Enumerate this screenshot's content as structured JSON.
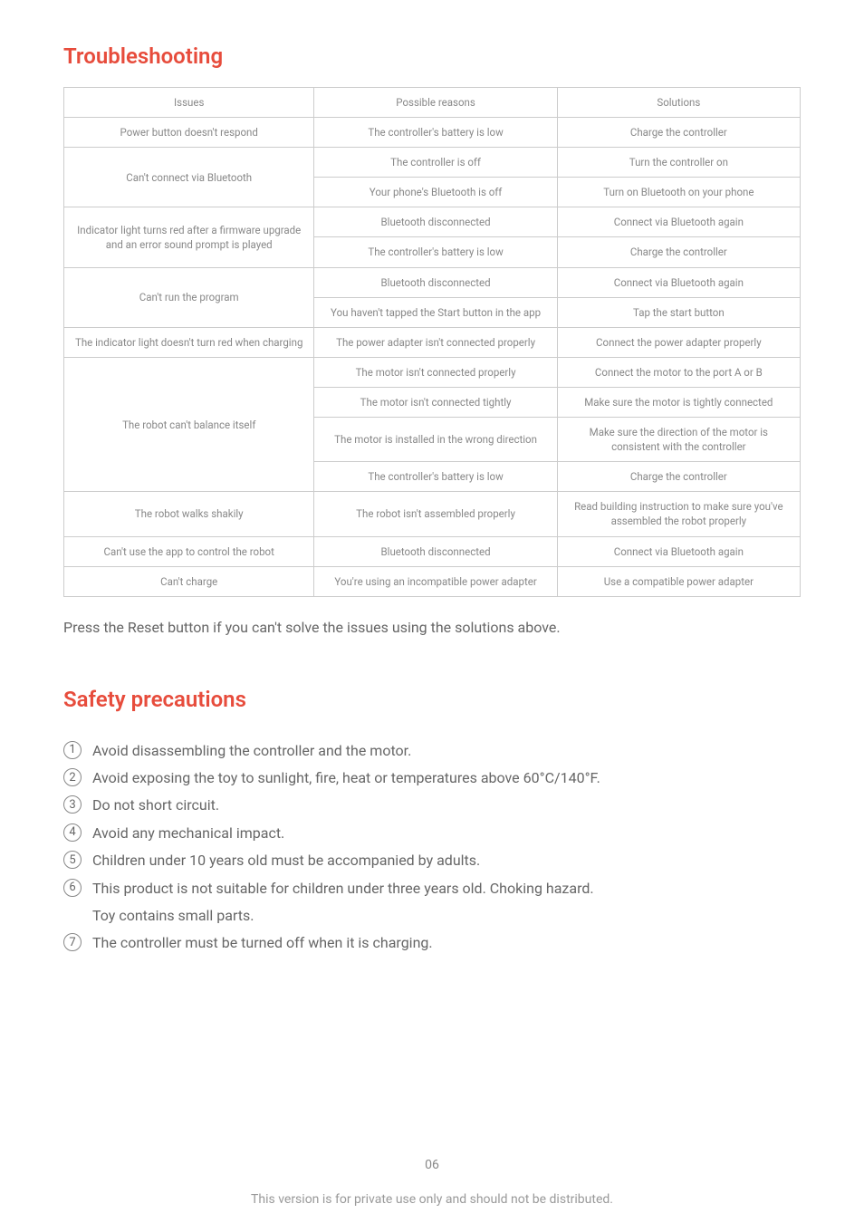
{
  "troubleshooting": {
    "title": "Troubleshooting",
    "headers": {
      "issues": "Issues",
      "reasons": "Possible reasons",
      "solutions": "Solutions"
    },
    "rows": [
      {
        "issue": "Power button doesn't respond",
        "reason": "The controller's battery is low",
        "solution": "Charge the controller"
      },
      {
        "issue": "Can't connect via Bluetooth",
        "span": 2,
        "cells": [
          {
            "reason": "The controller is off",
            "solution": "Turn the controller on"
          },
          {
            "reason": "Your phone's Bluetooth is off",
            "solution": "Turn on Bluetooth on your phone"
          }
        ]
      },
      {
        "issue": "Indicator light turns red after a firmware upgrade and an error sound prompt is played",
        "span": 2,
        "cells": [
          {
            "reason": "Bluetooth disconnected",
            "solution": "Connect via Bluetooth again"
          },
          {
            "reason": "The controller's battery is low",
            "solution": "Charge the controller"
          }
        ]
      },
      {
        "issue": "Can't run the program",
        "span": 2,
        "cells": [
          {
            "reason": "Bluetooth disconnected",
            "solution": "Connect via Bluetooth again"
          },
          {
            "reason": "You haven't tapped the Start button in the app",
            "solution": "Tap the start button"
          }
        ]
      },
      {
        "issue": "The indicator light doesn't turn red when charging",
        "reason": "The power adapter isn't connected properly",
        "solution": "Connect the power adapter properly"
      },
      {
        "issue": "The robot can't balance itself",
        "span": 4,
        "cells": [
          {
            "reason": "The motor isn't connected properly",
            "solution": "Connect the motor to the port A or B"
          },
          {
            "reason": "The motor isn't connected tightly",
            "solution": "Make sure the motor is tightly connected"
          },
          {
            "reason": "The motor is installed in the wrong direction",
            "solution": "Make sure the direction of the motor is consistent with the controller"
          },
          {
            "reason": "The controller's battery is low",
            "solution": "Charge the controller"
          }
        ]
      },
      {
        "issue": "The robot walks shakily",
        "reason": "The robot isn't assembled properly",
        "solution": "Read building instruction to make sure you've assembled the robot properly"
      },
      {
        "issue": "Can't use the app to control the robot",
        "reason": "Bluetooth disconnected",
        "solution": "Connect via Bluetooth again"
      },
      {
        "issue": "Can't charge",
        "reason": "You're using an incompatible power adapter",
        "solution": "Use a compatible power adapter"
      }
    ],
    "note": "Press the Reset button if you can't solve the issues using the solutions above."
  },
  "safety": {
    "title": "Safety precautions",
    "items": [
      "Avoid disassembling the controller and the motor.",
      "Avoid exposing the toy to sunlight, fire, heat or temperatures above 60°C/140°F.",
      "Do not short circuit.",
      "Avoid any mechanical impact.",
      "Children under 10 years old must be accompanied by adults.",
      "This product is not suitable for children under three years old. Choking hazard. Toy contains small parts.",
      "The controller must be turned off when it is charging."
    ]
  },
  "page_number": "06",
  "footer": "This version is for private use only and should not be distributed."
}
